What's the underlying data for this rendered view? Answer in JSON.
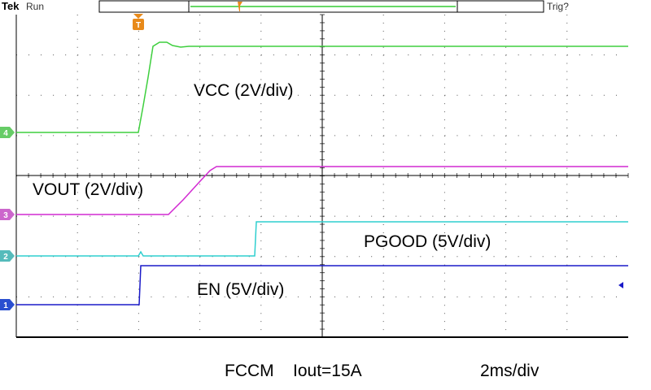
{
  "header": {
    "brand": "Tek",
    "status": "Run",
    "trigger_status": "Trig?"
  },
  "trigger_marker": "T",
  "channels": [
    {
      "marker": "4",
      "label": "VCC (2V/div)"
    },
    {
      "marker": "3",
      "label": "VOUT (2V/div)"
    },
    {
      "marker": "2",
      "label": "PGOOD (5V/div)"
    },
    {
      "marker": "1",
      "label": "EN (5V/div)"
    }
  ],
  "footer": {
    "mode": "FCCM",
    "current": "Iout=15A",
    "timebase": "2ms/div"
  }
}
